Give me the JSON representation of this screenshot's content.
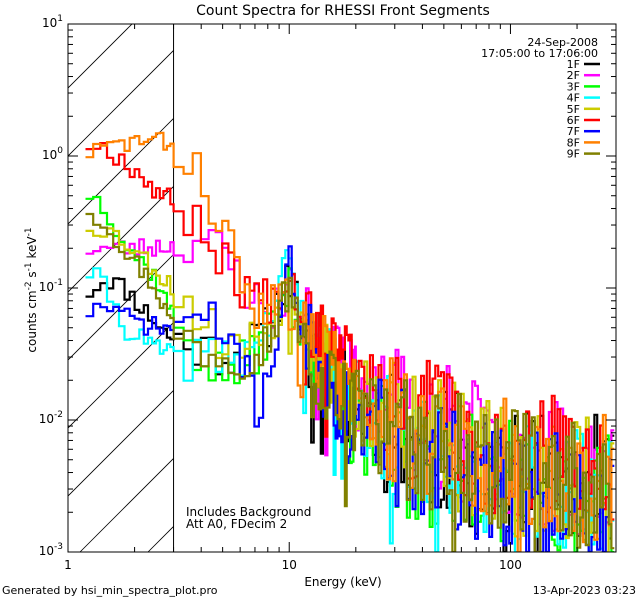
{
  "chart_data": {
    "type": "line",
    "title": "Count Spectra for RHESSI Front Segments",
    "xlabel": "Energy (keV)",
    "ylabel_parts": [
      "counts cm",
      "-2",
      " s",
      "-1",
      " keV",
      "-1"
    ],
    "xscale": "log",
    "yscale": "log",
    "xlim": [
      1,
      300
    ],
    "ylim": [
      0.001,
      10
    ],
    "x_ticks": [
      {
        "value": 1,
        "label": "1"
      },
      {
        "value": 10,
        "label": "10"
      },
      {
        "value": 100,
        "label": "100"
      }
    ],
    "y_ticks": [
      {
        "value": 0.001,
        "base": "10",
        "exp": "-3"
      },
      {
        "value": 0.01,
        "base": "10",
        "exp": "-2"
      },
      {
        "value": 0.1,
        "base": "10",
        "exp": "-1"
      },
      {
        "value": 1,
        "base": "10",
        "exp": "0"
      },
      {
        "value": 10,
        "base": "10",
        "exp": "1"
      }
    ],
    "shaded_region_keV": [
      1,
      3
    ],
    "date": "24-Sep-2008",
    "time_range": "17:05:00 to 17:06:00",
    "annotations": [
      "Includes Background",
      "Att A0, FDecim 2"
    ],
    "series": [
      {
        "name": "1F",
        "color": "#000000",
        "anchors": [
          [
            1.2,
            0.09
          ],
          [
            1.5,
            0.12
          ],
          [
            1.8,
            0.1
          ],
          [
            2.5,
            0.055
          ],
          [
            3,
            0.04
          ],
          [
            4,
            0.035
          ],
          [
            6,
            0.03
          ],
          [
            8,
            0.05
          ],
          [
            10,
            0.12
          ],
          [
            12,
            0.04
          ],
          [
            18,
            0.015
          ],
          [
            30,
            0.008
          ],
          [
            60,
            0.005
          ],
          [
            120,
            0.004
          ],
          [
            270,
            0.0035
          ]
        ],
        "seed": 11
      },
      {
        "name": "2F",
        "color": "#ff00ff",
        "anchors": [
          [
            1.2,
            0.2
          ],
          [
            2,
            0.2
          ],
          [
            3,
            0.21
          ],
          [
            4,
            0.25
          ],
          [
            5,
            0.18
          ],
          [
            6,
            0.12
          ],
          [
            8,
            0.06
          ],
          [
            10,
            0.1
          ],
          [
            12,
            0.05
          ],
          [
            16,
            0.025
          ],
          [
            25,
            0.014
          ],
          [
            40,
            0.01
          ],
          [
            80,
            0.006
          ],
          [
            150,
            0.0045
          ],
          [
            270,
            0.004
          ]
        ],
        "seed": 23
      },
      {
        "name": "3F",
        "color": "#00ff00",
        "anchors": [
          [
            1.2,
            0.55
          ],
          [
            1.5,
            0.4
          ],
          [
            1.8,
            0.22
          ],
          [
            2.5,
            0.12
          ],
          [
            3,
            0.06
          ],
          [
            4,
            0.03
          ],
          [
            5,
            0.022
          ],
          [
            7,
            0.03
          ],
          [
            10,
            0.1
          ],
          [
            12,
            0.03
          ],
          [
            18,
            0.01
          ],
          [
            30,
            0.006
          ],
          [
            60,
            0.004
          ],
          [
            120,
            0.003
          ],
          [
            270,
            0.0025
          ]
        ],
        "seed": 37
      },
      {
        "name": "4F",
        "color": "#00ffff",
        "anchors": [
          [
            1.2,
            0.14
          ],
          [
            1.5,
            0.1
          ],
          [
            1.8,
            0.05
          ],
          [
            2.5,
            0.035
          ],
          [
            3,
            0.03
          ],
          [
            4,
            0.03
          ],
          [
            6,
            0.03
          ],
          [
            8,
            0.05
          ],
          [
            10,
            0.17
          ],
          [
            12,
            0.04
          ],
          [
            18,
            0.015
          ],
          [
            30,
            0.008
          ],
          [
            60,
            0.004
          ],
          [
            120,
            0.003
          ],
          [
            270,
            0.0025
          ]
        ],
        "seed": 41
      },
      {
        "name": "5F",
        "color": "#cccc00",
        "anchors": [
          [
            1.2,
            0.3
          ],
          [
            1.5,
            0.28
          ],
          [
            2,
            0.2
          ],
          [
            3,
            0.1
          ],
          [
            4,
            0.06
          ],
          [
            5,
            0.04
          ],
          [
            6,
            0.035
          ],
          [
            8,
            0.05
          ],
          [
            10,
            0.11
          ],
          [
            12,
            0.04
          ],
          [
            18,
            0.016
          ],
          [
            30,
            0.01
          ],
          [
            60,
            0.006
          ],
          [
            120,
            0.004
          ],
          [
            270,
            0.0035
          ]
        ],
        "seed": 53
      },
      {
        "name": "6F",
        "color": "#ff0000",
        "anchors": [
          [
            1.2,
            1.25
          ],
          [
            1.5,
            1.15
          ],
          [
            2,
            0.8
          ],
          [
            2.5,
            0.55
          ],
          [
            3,
            0.45
          ],
          [
            4,
            0.3
          ],
          [
            5,
            0.17
          ],
          [
            6,
            0.11
          ],
          [
            8,
            0.08
          ],
          [
            10,
            0.13
          ],
          [
            12,
            0.06
          ],
          [
            15,
            0.035
          ],
          [
            20,
            0.02
          ],
          [
            30,
            0.012
          ],
          [
            60,
            0.007
          ],
          [
            120,
            0.005
          ],
          [
            270,
            0.0045
          ]
        ],
        "seed": 67
      },
      {
        "name": "7F",
        "color": "#0000ff",
        "anchors": [
          [
            1.2,
            0.065
          ],
          [
            1.5,
            0.075
          ],
          [
            1.8,
            0.06
          ],
          [
            2.5,
            0.05
          ],
          [
            3,
            0.05
          ],
          [
            4,
            0.06
          ],
          [
            5,
            0.045
          ],
          [
            6,
            0.035
          ],
          [
            7,
            0.012
          ],
          [
            8,
            0.02
          ],
          [
            10,
            0.15
          ],
          [
            12,
            0.04
          ],
          [
            18,
            0.012
          ],
          [
            30,
            0.006
          ],
          [
            60,
            0.004
          ],
          [
            120,
            0.003
          ],
          [
            270,
            0.0025
          ]
        ],
        "seed": 71
      },
      {
        "name": "8F",
        "color": "#ff8000",
        "anchors": [
          [
            1.2,
            1.05
          ],
          [
            1.5,
            1.15
          ],
          [
            2,
            1.3
          ],
          [
            2.5,
            1.3
          ],
          [
            3,
            1.2
          ],
          [
            4,
            0.7
          ],
          [
            5,
            0.3
          ],
          [
            6,
            0.12
          ],
          [
            7,
            0.07
          ],
          [
            8,
            0.06
          ],
          [
            10,
            0.12
          ],
          [
            12,
            0.05
          ],
          [
            18,
            0.018
          ],
          [
            30,
            0.01
          ],
          [
            60,
            0.006
          ],
          [
            120,
            0.004
          ],
          [
            270,
            0.0035
          ]
        ],
        "seed": 83
      },
      {
        "name": "9F",
        "color": "#808000",
        "anchors": [
          [
            1.2,
            0.42
          ],
          [
            1.5,
            0.3
          ],
          [
            1.8,
            0.2
          ],
          [
            2.5,
            0.1
          ],
          [
            3,
            0.05
          ],
          [
            4,
            0.035
          ],
          [
            6,
            0.03
          ],
          [
            8,
            0.04
          ],
          [
            10,
            0.1
          ],
          [
            12,
            0.035
          ],
          [
            18,
            0.013
          ],
          [
            30,
            0.008
          ],
          [
            60,
            0.005
          ],
          [
            120,
            0.0035
          ],
          [
            270,
            0.003
          ]
        ],
        "seed": 97
      }
    ]
  },
  "footer": {
    "generated_by": "Generated by hsi_min_spectra_plot.pro",
    "date_stamp": "13-Apr-2023 03:23"
  }
}
